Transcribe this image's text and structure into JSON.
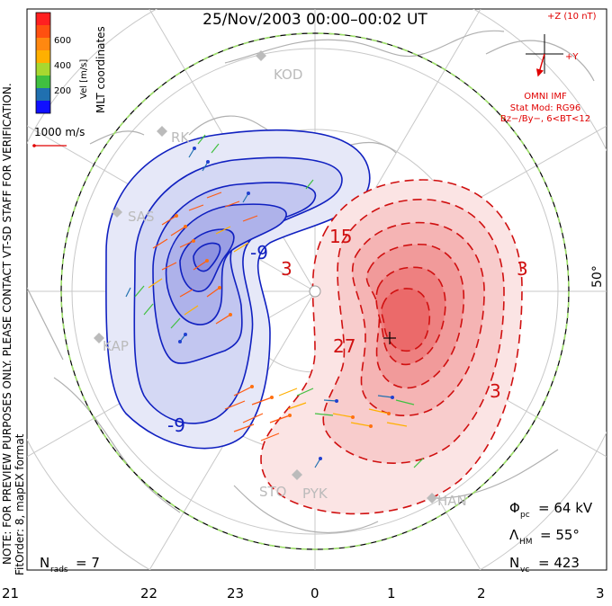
{
  "header": {
    "title": "25/Nov/2003 00:00–00:02 UT",
    "coords": "MLT coordinates",
    "note": "NOTE: FOR PREVIEW PURPOSES ONLY. PLEASE CONTACT VT-SD STAFF FOR VERIFICATION.",
    "fit": "FitOrder: 8, mapEX format"
  },
  "colorbar": {
    "label": "Vel [m/s]",
    "ticks": [
      "600",
      "400",
      "200"
    ],
    "colors": [
      "#ff2020",
      "#ff7010",
      "#ffb000",
      "#c8e020",
      "#40c040",
      "#2090a0",
      "#2040d0",
      "#1010ff"
    ]
  },
  "scale_vector": {
    "label": "1000 m/s"
  },
  "imf": {
    "z_label": "+Z (10 nT)",
    "y_label": "+Y",
    "omni": "OMNI IMF",
    "stat_mod": "Stat Mod: RG96",
    "stat_cond": "Bz−/By−, 6<BT<12"
  },
  "latitude_label": "50°",
  "contour_labels": {
    "neg1": "-9",
    "neg2": "-9",
    "pos1": "3",
    "pos2": "15",
    "pos3": "27",
    "pos4": "3",
    "pos5": "3"
  },
  "stations": [
    "KOD",
    "RK",
    "SAS",
    "KAP",
    "STO",
    "PYK",
    "HAN"
  ],
  "stats": {
    "phi_pc": {
      "symbol": "Φ",
      "sub": "pc",
      "value": "= 64 kV"
    },
    "lambda_hm": {
      "symbol": "Λ",
      "sub": "HM",
      "value": "= 55°"
    },
    "n_vc": {
      "symbol": "N",
      "sub": "vc",
      "value": "= 423"
    },
    "n_rads": {
      "symbol": "N",
      "sub": "rads",
      "value": "= 7"
    }
  },
  "mlt_axis": [
    "21",
    "22",
    "23",
    "0",
    "1",
    "2",
    "3"
  ],
  "colors": {
    "negative_contour": "#1020c0",
    "positive_contour": "#d01010",
    "boundary_green": "#9ee06a"
  }
}
